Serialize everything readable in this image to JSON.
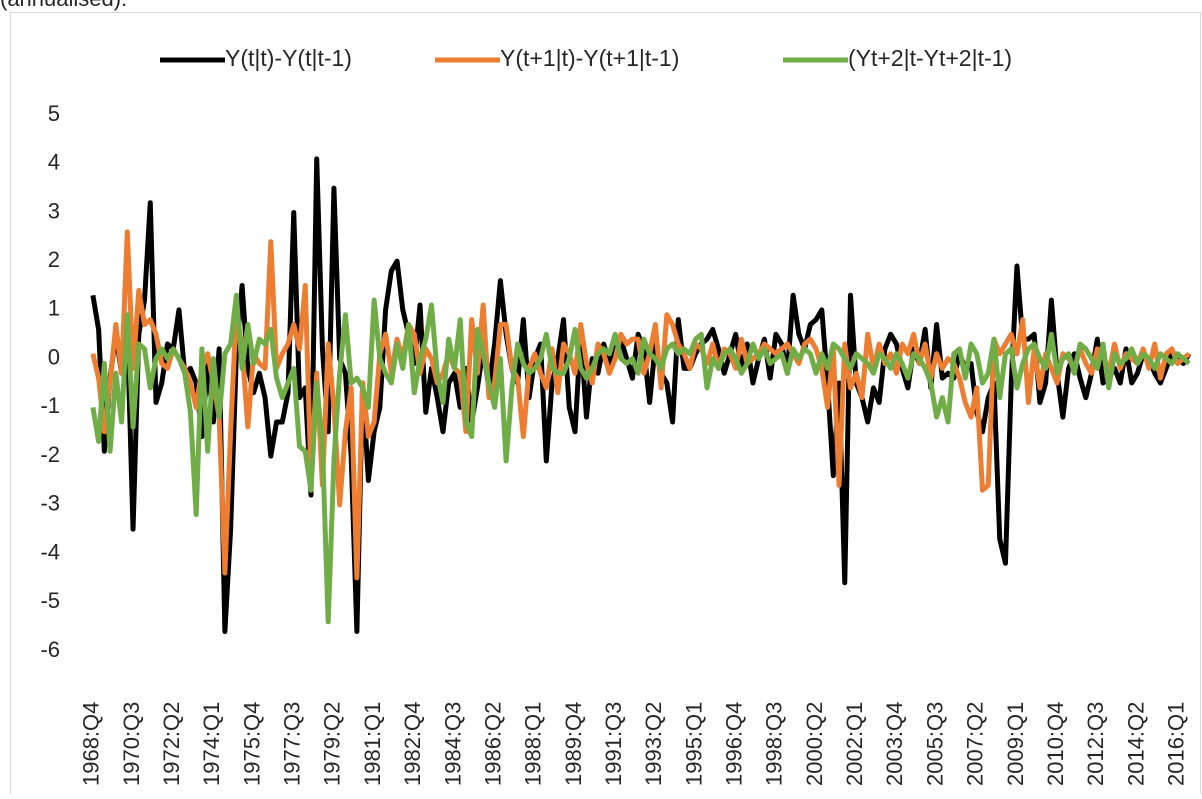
{
  "chart_data": {
    "type": "line",
    "subtitle": "(annualised).",
    "legend": "top",
    "categories": [
      "1968:Q4",
      null,
      null,
      null,
      null,
      null,
      null,
      "1970:Q3",
      null,
      null,
      null,
      null,
      null,
      null,
      "1972:Q2",
      null,
      null,
      null,
      null,
      null,
      null,
      "1974:Q1",
      null,
      null,
      null,
      null,
      null,
      null,
      "1975:Q4",
      null,
      null,
      null,
      null,
      null,
      null,
      "1977:Q3",
      null,
      null,
      null,
      null,
      null,
      null,
      "1979:Q2",
      null,
      null,
      null,
      null,
      null,
      null,
      "1981:Q1",
      null,
      null,
      null,
      null,
      null,
      null,
      "1982:Q4",
      null,
      null,
      null,
      null,
      null,
      null,
      "1984:Q3",
      null,
      null,
      null,
      null,
      null,
      null,
      "1986:Q2",
      null,
      null,
      null,
      null,
      null,
      null,
      "1988:Q1",
      null,
      null,
      null,
      null,
      null,
      null,
      "1989:Q4",
      null,
      null,
      null,
      null,
      null,
      null,
      "1991:Q3",
      null,
      null,
      null,
      null,
      null,
      null,
      "1993:Q2",
      null,
      null,
      null,
      null,
      null,
      null,
      "1995:Q1",
      null,
      null,
      null,
      null,
      null,
      null,
      "1996:Q4",
      null,
      null,
      null,
      null,
      null,
      null,
      "1998:Q3",
      null,
      null,
      null,
      null,
      null,
      null,
      "2000:Q2",
      null,
      null,
      null,
      null,
      null,
      null,
      "2002:Q1",
      null,
      null,
      null,
      null,
      null,
      null,
      "2003:Q4",
      null,
      null,
      null,
      null,
      null,
      null,
      "2005:Q3",
      null,
      null,
      null,
      null,
      null,
      null,
      "2007:Q2",
      null,
      null,
      null,
      null,
      null,
      null,
      "2009:Q1",
      null,
      null,
      null,
      null,
      null,
      null,
      "2010:Q4",
      null,
      null,
      null,
      null,
      null,
      null,
      "2012:Q3",
      null,
      null,
      null,
      null,
      null,
      null,
      "2014:Q2",
      null,
      null,
      null,
      null,
      null,
      null,
      "2016:Q1",
      null,
      null
    ],
    "series": [
      {
        "name": "Y(t|t)-Y(t|t-1)",
        "color": "#000000",
        "values": [
          1.3,
          0.6,
          -1.9,
          -0.4,
          0.5,
          -0.3,
          0.6,
          -3.5,
          0.5,
          1.2,
          3.2,
          -0.9,
          -0.5,
          0.3,
          0.2,
          1.0,
          -0.3,
          -0.2,
          -0.5,
          -1.6,
          -0.1,
          -1.3,
          0.2,
          -5.6,
          -3.5,
          0.1,
          1.5,
          -0.2,
          -0.7,
          -0.3,
          -0.8,
          -2.0,
          -1.3,
          -1.3,
          -0.7,
          3.0,
          -0.8,
          -0.6,
          -2.8,
          4.1,
          0.2,
          -1.5,
          3.5,
          0.0,
          -0.3,
          -2.0,
          -5.6,
          -0.5,
          -2.5,
          -1.5,
          -1.0,
          1.0,
          1.8,
          2.0,
          1.0,
          0.5,
          -0.1,
          1.1,
          -1.1,
          -0.2,
          -0.8,
          -1.5,
          -0.5,
          -0.3,
          -1.0,
          -0.2,
          -1.3,
          -0.6,
          0.2,
          -0.6,
          0.3,
          1.6,
          0.5,
          -0.2,
          -0.5,
          0.8,
          -0.8,
          0.0,
          0.3,
          -2.1,
          -0.5,
          0.0,
          0.8,
          -1.0,
          -1.5,
          0.5,
          -1.2,
          0.0,
          -0.3,
          0.3,
          -0.1,
          0.2,
          0.4,
          0.0,
          -0.4,
          0.5,
          0.2,
          -0.9,
          0.3,
          -0.3,
          -0.5,
          -1.3,
          0.8,
          -0.2,
          -0.2,
          0.1,
          0.3,
          0.4,
          0.6,
          0.2,
          -0.3,
          0.1,
          0.5,
          -0.2,
          0.3,
          -0.5,
          0.0,
          0.4,
          -0.4,
          0.5,
          0.3,
          -0.3,
          1.3,
          0.5,
          0.2,
          0.7,
          0.8,
          1.0,
          -0.5,
          -2.4,
          -0.5,
          -4.6,
          1.3,
          -0.5,
          -0.8,
          -1.3,
          -0.6,
          -0.9,
          0.2,
          0.5,
          0.3,
          -0.2,
          -0.6,
          0.2,
          -0.1,
          0.6,
          -0.6,
          0.7,
          -0.4,
          -0.3,
          -0.4,
          0.1,
          -0.2,
          -0.1,
          -1.1,
          -1.5,
          -0.8,
          -0.5,
          -3.7,
          -4.2,
          -0.5,
          1.9,
          0.4,
          0.4,
          0.5,
          -0.9,
          -0.5,
          1.2,
          -0.3,
          -1.2,
          -0.2,
          0.1,
          -0.4,
          -0.8,
          -0.3,
          0.4,
          -0.5,
          -0.4,
          -0.2,
          -0.5,
          0.2,
          -0.5,
          -0.3,
          0.1,
          0.0,
          -0.3,
          -0.5,
          -0.2,
          0.1,
          0.0,
          -0.1,
          0.1
        ]
      },
      {
        "name": "Y(t+1|t)-Y(t+1|t-1)",
        "color": "#ed7d31",
        "values": [
          0.1,
          -0.4,
          -1.5,
          -0.5,
          0.7,
          -0.3,
          2.6,
          -0.2,
          1.4,
          0.7,
          0.8,
          0.5,
          -0.1,
          -0.2,
          0.2,
          0.0,
          -0.2,
          -0.5,
          -1.0,
          -0.2,
          0.1,
          -0.5,
          -1.2,
          -4.4,
          -1.5,
          1.0,
          0.2,
          -1.4,
          0.1,
          -0.1,
          -0.2,
          2.4,
          -0.2,
          0.1,
          0.3,
          0.7,
          0.2,
          1.5,
          -2.4,
          -0.3,
          -2.6,
          0.3,
          -1.0,
          -3.0,
          -1.5,
          -0.6,
          -4.5,
          -0.5,
          -1.6,
          -1.3,
          0.1,
          0.5,
          -0.3,
          0.4,
          0.0,
          0.7,
          0.5,
          -0.3,
          0.2,
          0.0,
          -0.5,
          -0.3,
          0.1,
          -0.2,
          -0.3,
          -1.5,
          0.8,
          -0.3,
          1.1,
          -0.8,
          -0.5,
          0.7,
          0.7,
          -0.2,
          -0.4,
          -1.6,
          -0.2,
          0.1,
          -0.3,
          -0.6,
          0.2,
          -0.7,
          0.3,
          0.1,
          -0.3,
          0.7,
          -0.1,
          -0.5,
          0.3,
          0.1,
          -0.3,
          0.0,
          0.5,
          0.3,
          0.4,
          0.4,
          -0.3,
          0.1,
          0.7,
          -0.6,
          0.9,
          0.7,
          0.3,
          0.1,
          -0.2,
          0.3,
          0.2,
          -0.1,
          0.3,
          -0.2,
          0.2,
          0.1,
          -0.2,
          0.4,
          -0.1,
          0.0,
          0.1,
          0.3,
          0.2,
          0.1,
          0.2,
          0.3,
          0.1,
          -0.1,
          0.3,
          0.4,
          0.2,
          -0.2,
          -1.0,
          0.2,
          -2.6,
          0.3,
          -0.6,
          -0.3,
          -0.8,
          0.5,
          -0.2,
          0.3,
          -0.1,
          0.1,
          -0.3,
          0.3,
          0.1,
          0.5,
          -0.1,
          0.3,
          -0.4,
          0.1,
          -0.2,
          0.0,
          -0.1,
          -0.4,
          -0.9,
          -1.2,
          -0.6,
          -2.7,
          -2.6,
          0.4,
          0.1,
          0.3,
          0.5,
          0.1,
          0.8,
          -0.9,
          0.2,
          -0.6,
          0.1,
          -0.2,
          -0.5,
          0.1,
          0.0,
          -0.2,
          0.2,
          -0.1,
          -0.3,
          0.2,
          0.1,
          -0.3,
          0.3,
          -0.2,
          0.1,
          0.0,
          -0.1,
          0.2,
          -0.2,
          0.3,
          -0.4,
          0.1,
          0.2,
          -0.1,
          0.0,
          0.1
        ]
      },
      {
        "name": "(Yt+2|t-Yt+2|t-1)",
        "color": "#70ad47",
        "values": [
          -1.0,
          -1.7,
          -0.1,
          -1.9,
          -0.3,
          -1.3,
          0.9,
          -1.4,
          0.3,
          0.2,
          -0.6,
          0.0,
          0.2,
          0.0,
          0.2,
          0.0,
          -0.3,
          -1.1,
          -3.2,
          0.2,
          -1.9,
          0.0,
          -1.2,
          0.1,
          0.3,
          1.3,
          -0.2,
          0.7,
          -0.1,
          0.4,
          0.3,
          0.6,
          -0.4,
          -0.8,
          -0.5,
          -0.2,
          -1.8,
          -1.9,
          -2.7,
          -0.5,
          -1.8,
          -5.4,
          -2.1,
          -0.3,
          0.9,
          -0.5,
          -0.4,
          -0.6,
          -1.0,
          1.2,
          0.0,
          -0.3,
          -0.5,
          0.3,
          -0.2,
          0.7,
          -0.7,
          0.0,
          0.4,
          1.1,
          -0.3,
          -0.9,
          0.4,
          -0.2,
          0.8,
          -1.3,
          -1.6,
          0.6,
          0.1,
          -0.5,
          -1.0,
          0.0,
          -2.1,
          -0.6,
          0.3,
          -0.1,
          -0.3,
          -0.2,
          0.0,
          0.5,
          -0.2,
          -0.3,
          -0.3,
          0.0,
          0.6,
          -0.2,
          -0.4,
          -0.2,
          0.1,
          0.2,
          0.1,
          0.5,
          0.0,
          -0.1,
          0.0,
          -0.3,
          0.4,
          0.1,
          0.0,
          -0.2,
          0.2,
          0.3,
          0.1,
          0.2,
          0.1,
          0.4,
          0.5,
          -0.6,
          0.0,
          -0.2,
          0.1,
          0.2,
          0.0,
          -0.3,
          -0.1,
          0.3,
          0.0,
          0.2,
          -0.1,
          0.0,
          0.1,
          -0.3,
          0.2,
          0.0,
          0.2,
          0.1,
          -0.3,
          0.1,
          -0.2,
          0.3,
          0.2,
          0.0,
          -0.2,
          0.1,
          0.0,
          -0.1,
          -0.3,
          0.1,
          0.0,
          -0.2,
          0.1,
          -0.1,
          -0.4,
          0.1,
          0.0,
          -0.2,
          -0.5,
          -1.2,
          -0.8,
          -1.3,
          0.1,
          0.2,
          -0.4,
          0.3,
          0.1,
          -0.5,
          -0.3,
          0.4,
          -0.8,
          0.1,
          0.2,
          -0.6,
          -0.1,
          0.2,
          0.3,
          0.0,
          -0.2,
          0.5,
          -0.3,
          0.0,
          0.1,
          -0.3,
          0.3,
          0.2,
          0.0,
          -0.2,
          0.3,
          -0.6,
          0.1,
          -0.1,
          0.0,
          0.2,
          -0.1,
          0.1,
          0.0,
          -0.2,
          0.1,
          0.0,
          -0.1,
          0.1,
          0.0,
          -0.1
        ]
      }
    ],
    "ylim": [
      -6,
      5
    ],
    "yticks": [
      -6,
      -5,
      -4,
      -3,
      -2,
      -1,
      0,
      1,
      2,
      3,
      4,
      5
    ],
    "grid": false
  }
}
